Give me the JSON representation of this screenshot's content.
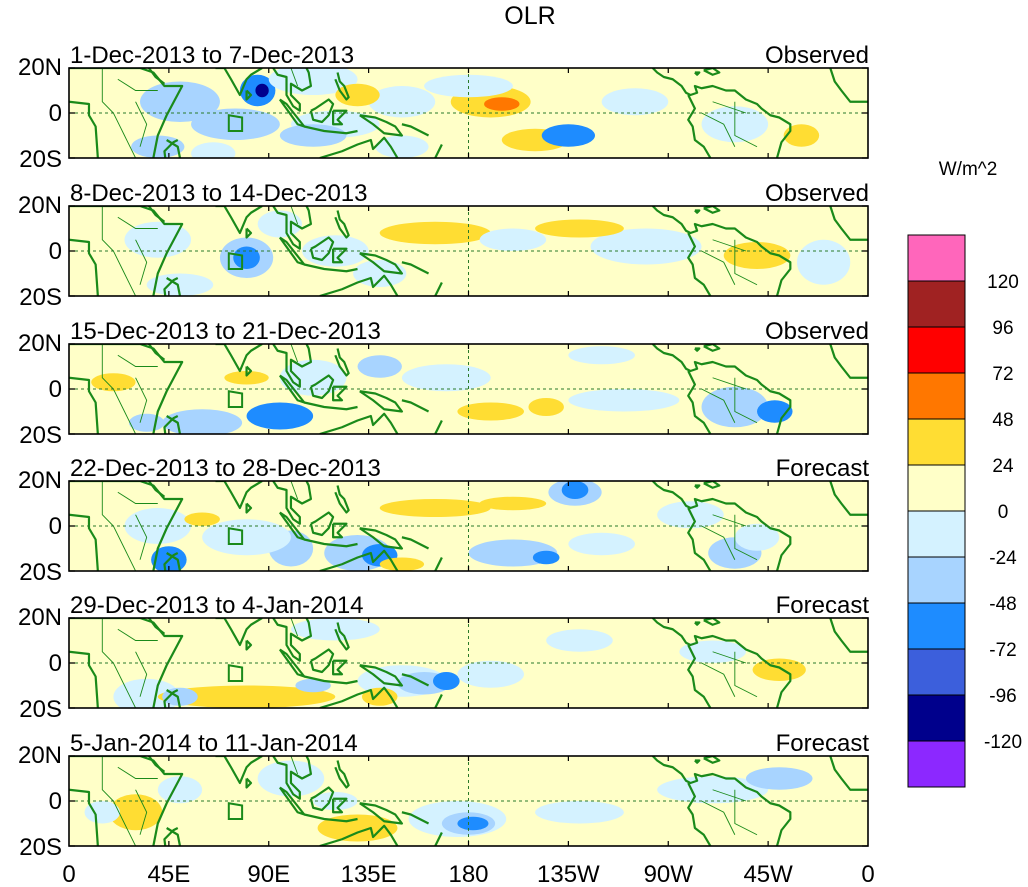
{
  "title": "OLR",
  "colorbar": {
    "units": "W/m^2",
    "colors": [
      "#ff66bb",
      "#a02222",
      "#ff0000",
      "#ff7700",
      "#ffdd33",
      "#ffffc8",
      "#d4f2ff",
      "#a8d4ff",
      "#1e8cff",
      "#3c5fdc",
      "#00008c",
      "#8c28ff"
    ],
    "labels": [
      "120",
      "96",
      "72",
      "48",
      "24",
      "0",
      "-24",
      "-48",
      "-72",
      "-96",
      "-120"
    ]
  },
  "axes": {
    "lat_labels": [
      "20N",
      "0",
      "20S"
    ],
    "lon_labels": [
      "0",
      "45E",
      "90E",
      "135E",
      "180",
      "135W",
      "90W",
      "45W",
      "0"
    ]
  },
  "panels": [
    {
      "date": "1-Dec-2013 to 7-Dec-2013",
      "type": "Observed"
    },
    {
      "date": "8-Dec-2013 to 14-Dec-2013",
      "type": "Observed"
    },
    {
      "date": "15-Dec-2013 to 21-Dec-2013",
      "type": "Observed"
    },
    {
      "date": "22-Dec-2013 to 28-Dec-2013",
      "type": "Forecast"
    },
    {
      "date": "29-Dec-2013 to 4-Jan-2014",
      "type": "Forecast"
    },
    {
      "date": "5-Jan-2014 to 11-Jan-2014",
      "type": "Forecast"
    }
  ],
  "colors": {
    "coastline": "#1a8a1a",
    "grid": "#2a7a2a",
    "background": "#ffffc8"
  }
}
